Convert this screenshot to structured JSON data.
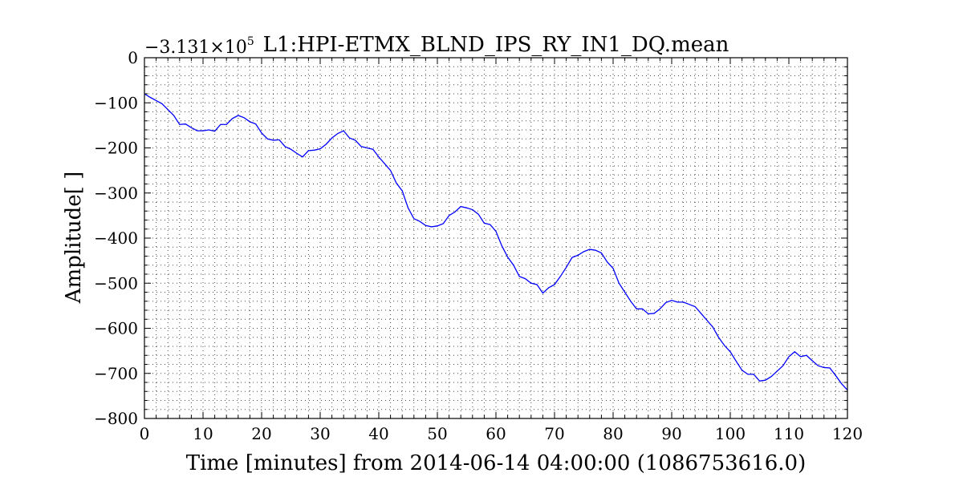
{
  "chart_data": {
    "type": "line",
    "title": "L1:HPI-ETMX_BLND_IPS_RY_IN1_DQ.mean",
    "xlabel": "Time [minutes] from 2014-06-14 04:00:00 (1086753616.0)",
    "ylabel": "Amplitude[ ]",
    "y_offset_label": "−3.131×10",
    "y_offset_exponent": "5",
    "xlim": [
      0,
      120
    ],
    "ylim": [
      -800,
      0
    ],
    "xticks": [
      0,
      10,
      20,
      30,
      40,
      50,
      60,
      70,
      80,
      90,
      100,
      110,
      120
    ],
    "yticks": [
      0,
      -100,
      -200,
      -300,
      -400,
      -500,
      -600,
      -700,
      -800
    ],
    "ytick_labels": [
      "0",
      "−100",
      "−200",
      "−300",
      "−400",
      "−500",
      "−600",
      "−700",
      "−800"
    ],
    "grid": true,
    "series": [
      {
        "color": "#0000ff",
        "x": [
          0,
          1,
          2,
          3,
          4,
          5,
          6,
          7,
          8,
          9,
          10,
          11,
          12,
          13,
          14,
          15,
          16,
          17,
          18,
          19,
          20,
          21,
          22,
          23,
          24,
          25,
          26,
          27,
          28,
          29,
          30,
          31,
          32,
          33,
          34,
          35,
          36,
          37,
          38,
          39,
          40,
          41,
          42,
          43,
          44,
          45,
          46,
          47,
          48,
          49,
          50,
          51,
          52,
          53,
          54,
          55,
          56,
          57,
          58,
          59,
          60,
          61,
          62,
          63,
          64,
          65,
          66,
          67,
          68,
          69,
          70,
          71,
          72,
          73,
          74,
          75,
          76,
          77,
          78,
          79,
          80,
          81,
          82,
          83,
          84,
          85,
          86,
          87,
          88,
          89,
          90,
          91,
          92,
          93,
          94,
          95,
          96,
          97,
          98,
          99,
          100,
          101,
          102,
          103,
          104,
          105,
          106,
          107,
          108,
          109,
          110,
          111,
          112,
          113,
          114,
          115,
          116,
          117,
          118,
          119,
          120
        ],
        "y": [
          -80,
          -88,
          -95,
          -102,
          -115,
          -128,
          -148,
          -147,
          -155,
          -162,
          -162,
          -160,
          -163,
          -148,
          -148,
          -135,
          -128,
          -133,
          -142,
          -147,
          -167,
          -180,
          -183,
          -182,
          -197,
          -203,
          -212,
          -220,
          -206,
          -205,
          -202,
          -192,
          -178,
          -168,
          -162,
          -178,
          -183,
          -197,
          -200,
          -203,
          -220,
          -235,
          -250,
          -278,
          -295,
          -333,
          -357,
          -363,
          -372,
          -375,
          -373,
          -368,
          -350,
          -342,
          -330,
          -333,
          -337,
          -347,
          -367,
          -370,
          -385,
          -417,
          -442,
          -460,
          -485,
          -490,
          -500,
          -503,
          -522,
          -510,
          -503,
          -485,
          -465,
          -443,
          -438,
          -430,
          -425,
          -427,
          -433,
          -453,
          -467,
          -500,
          -520,
          -540,
          -557,
          -557,
          -568,
          -567,
          -557,
          -543,
          -538,
          -542,
          -542,
          -547,
          -552,
          -567,
          -582,
          -597,
          -620,
          -638,
          -652,
          -673,
          -693,
          -702,
          -702,
          -717,
          -715,
          -707,
          -695,
          -683,
          -663,
          -652,
          -663,
          -660,
          -672,
          -683,
          -687,
          -688,
          -705,
          -723,
          -737
        ]
      }
    ]
  }
}
